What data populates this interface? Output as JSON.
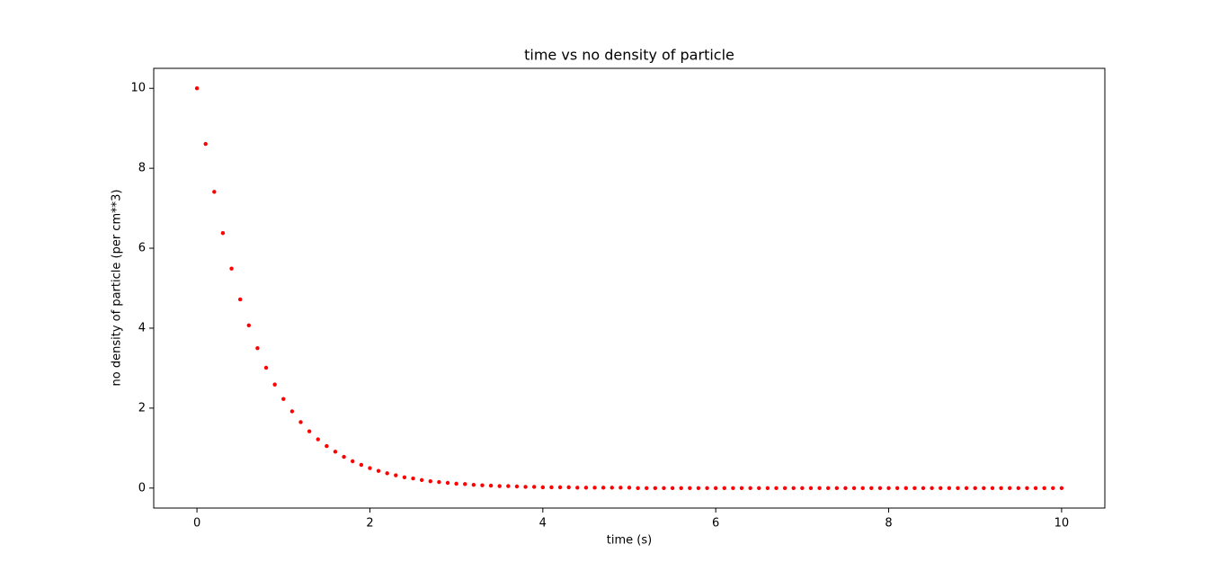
{
  "chart_data": {
    "type": "scatter",
    "title": "time vs no density of particle",
    "xlabel": "time (s)",
    "ylabel": "no density of particle (per cm**3)",
    "color": "#ff0000",
    "x": [
      0,
      0.1,
      0.2,
      0.3,
      0.4,
      0.5,
      0.6,
      0.7,
      0.8,
      0.9,
      1,
      1.1,
      1.2,
      1.3,
      1.4,
      1.5,
      1.6,
      1.7,
      1.8,
      1.9,
      2,
      2.1,
      2.2,
      2.3,
      2.4,
      2.5,
      2.6,
      2.7,
      2.8,
      2.9,
      3,
      3.1,
      3.2,
      3.3,
      3.4,
      3.5,
      3.6,
      3.7,
      3.8,
      3.9,
      4,
      4.1,
      4.2,
      4.3,
      4.4,
      4.5,
      4.6,
      4.7,
      4.8,
      4.9,
      5,
      5.1,
      5.2,
      5.3,
      5.4,
      5.5,
      5.6,
      5.7,
      5.8,
      5.9,
      6,
      6.1,
      6.2,
      6.3,
      6.4,
      6.5,
      6.6,
      6.7,
      6.8,
      6.9,
      7,
      7.1,
      7.2,
      7.3,
      7.4,
      7.5,
      7.6,
      7.7,
      7.8,
      7.9,
      8,
      8.1,
      8.2,
      8.3,
      8.4,
      8.5,
      8.6,
      8.7,
      8.8,
      8.9,
      9,
      9.1,
      9.2,
      9.3,
      9.4,
      9.5,
      9.6,
      9.7,
      9.8,
      9.9,
      10
    ],
    "values": [
      10,
      8.61,
      7.41,
      6.38,
      5.49,
      4.72,
      4.07,
      3.5,
      3.01,
      2.59,
      2.23,
      1.92,
      1.65,
      1.42,
      1.22,
      1.05,
      0.91,
      0.78,
      0.67,
      0.58,
      0.5,
      0.43,
      0.37,
      0.32,
      0.27,
      0.24,
      0.2,
      0.17,
      0.15,
      0.13,
      0.11,
      0.1,
      0.08,
      0.07,
      0.06,
      0.05,
      0.05,
      0.04,
      0.03,
      0.03,
      0.02,
      0.02,
      0.02,
      0.02,
      0.01,
      0.01,
      0.01,
      0.01,
      0.01,
      0.01,
      0.01,
      0,
      0,
      0,
      0,
      0,
      0,
      0,
      0,
      0,
      0,
      0,
      0,
      0,
      0,
      0,
      0,
      0,
      0,
      0,
      0,
      0,
      0,
      0,
      0,
      0,
      0,
      0,
      0,
      0,
      0,
      0,
      0,
      0,
      0,
      0,
      0,
      0,
      0,
      0,
      0,
      0,
      0,
      0,
      0,
      0,
      0,
      0,
      0,
      0,
      0
    ],
    "xlim": [
      -0.5,
      10.5
    ],
    "xticks": [
      0,
      2,
      4,
      6,
      8,
      10
    ],
    "ylim": [
      -0.5,
      10.5
    ],
    "yticks": [
      0,
      2,
      4,
      6,
      8,
      10
    ]
  }
}
